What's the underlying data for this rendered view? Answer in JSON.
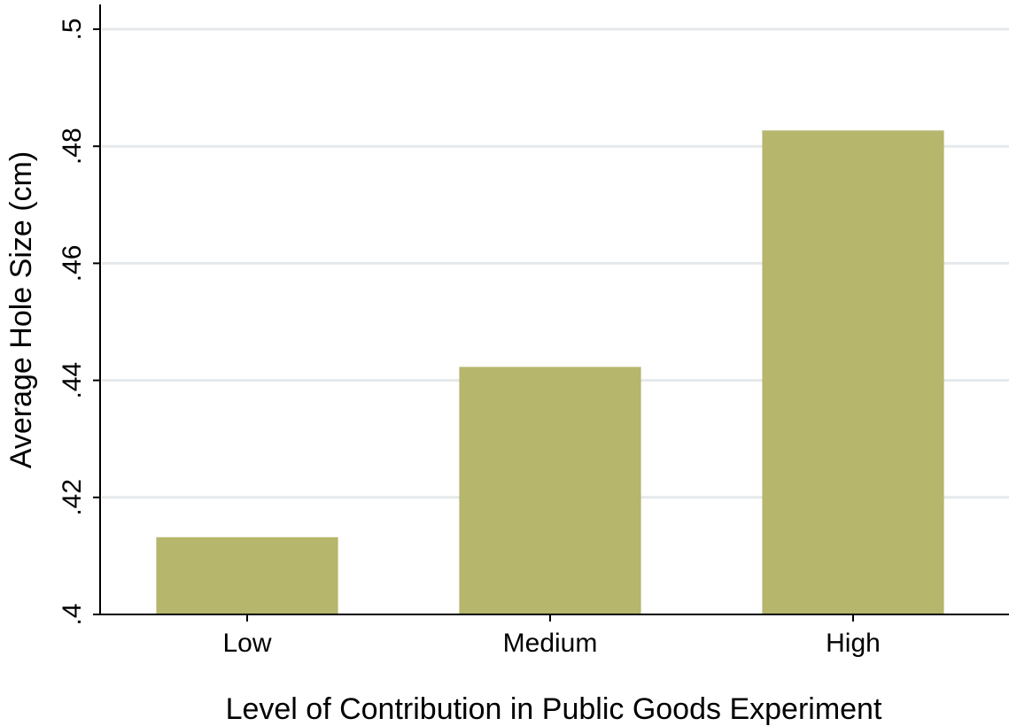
{
  "chart_data": {
    "type": "bar",
    "title": "",
    "xlabel": "Level of Contribution in Public Goods Experiment",
    "ylabel": "Average Hole Size (cm)",
    "categories": [
      "Low",
      "Medium",
      "High"
    ],
    "values": [
      0.4132,
      0.4423,
      0.4827
    ],
    "ylim": [
      0.4,
      0.5
    ],
    "yticks": [
      0.4,
      0.42,
      0.44,
      0.46,
      0.48,
      0.5
    ],
    "ytick_labels": [
      ".4",
      ".42",
      ".44",
      ".46",
      ".48",
      ".5"
    ],
    "grid": true,
    "bar_color": "#b6b66d",
    "grid_color": "#e6e9ec"
  }
}
